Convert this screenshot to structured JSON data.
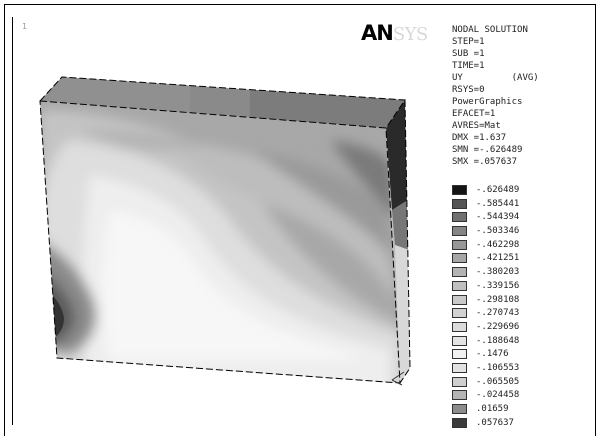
{
  "viewport": {
    "number": "1"
  },
  "logo": {
    "part1": "AN",
    "part2": "SYS"
  },
  "info": {
    "lines": [
      "NODAL SOLUTION",
      "STEP=1",
      "SUB =1",
      "TIME=1",
      "UY         (AVG)",
      "RSYS=0",
      "PowerGraphics",
      "EFACET=1",
      "AVRES=Mat",
      "DMX =1.637",
      "SMN =-.626489",
      "SMX =.057637"
    ]
  },
  "legend": {
    "items": [
      {
        "label": "-.626489",
        "color": "#141414"
      },
      {
        "label": "-.585441",
        "color": "#555555"
      },
      {
        "label": "-.544394",
        "color": "#707070"
      },
      {
        "label": "-.503346",
        "color": "#858585"
      },
      {
        "label": "-.462298",
        "color": "#979797"
      },
      {
        "label": "-.421251",
        "color": "#a6a6a6"
      },
      {
        "label": "-.380203",
        "color": "#b3b3b3"
      },
      {
        "label": "-.339156",
        "color": "#bfbfbf"
      },
      {
        "label": "-.298108",
        "color": "#c9c9c9"
      },
      {
        "label": "-.270743",
        "color": "#d2d2d2"
      },
      {
        "label": "-.229696",
        "color": "#dbdbdb"
      },
      {
        "label": "-.188648",
        "color": "#e4e4e4"
      },
      {
        "label": "-.1476",
        "color": "#f1f1f1"
      },
      {
        "label": "-.106553",
        "color": "#e2e2e2"
      },
      {
        "label": "-.065505",
        "color": "#cfcfcf"
      },
      {
        "label": "-.024458",
        "color": "#b4b4b4"
      },
      {
        "label": ".01659",
        "color": "#8c8c8c"
      },
      {
        "label": ".057637",
        "color": "#3a3a3a"
      }
    ]
  }
}
